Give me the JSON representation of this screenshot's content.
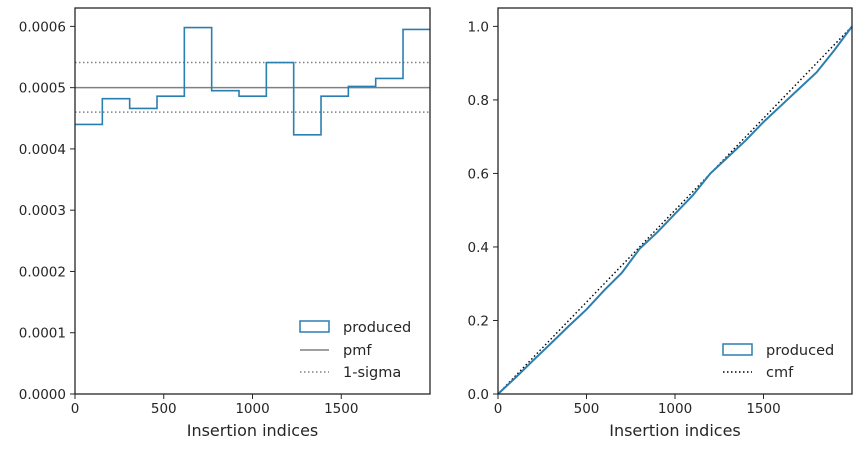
{
  "chart_data": [
    {
      "type": "step",
      "xlabel": "Insertion indices",
      "ylabel": "",
      "title": "",
      "xlim": [
        0,
        2000
      ],
      "ylim": [
        0,
        0.00063
      ],
      "xticks": [
        0,
        500,
        1000,
        1500
      ],
      "xtick_labels": [
        "0",
        "500",
        "1000",
        "1500"
      ],
      "yticks": [
        0,
        0.0001,
        0.0002,
        0.0003,
        0.0004,
        0.0005,
        0.0006
      ],
      "ytick_labels": [
        "0.0000",
        "0.0001",
        "0.0002",
        "0.0003",
        "0.0004",
        "0.0005",
        "0.0006"
      ],
      "bin_edges": [
        0,
        154,
        308,
        462,
        616,
        770,
        924,
        1078,
        1232,
        1386,
        1540,
        1694,
        1848,
        2000
      ],
      "series": [
        {
          "name": "produced",
          "kind": "histogram-step",
          "color": "#2b7fb0",
          "values": [
            0.00044,
            0.000482,
            0.000466,
            0.000486,
            0.000598,
            0.000495,
            0.000486,
            0.000541,
            0.000423,
            0.000486,
            0.000502,
            0.000515,
            0.000595
          ]
        },
        {
          "name": "pmf",
          "kind": "hline",
          "color": "#808080",
          "value": 0.0005
        },
        {
          "name": "1-sigma",
          "kind": "hline-dotted",
          "color": "#808080",
          "values": [
            0.00046,
            0.000541
          ]
        }
      ],
      "legend": {
        "position": "lower-right",
        "entries": [
          "produced",
          "pmf",
          "1-sigma"
        ]
      }
    },
    {
      "type": "line",
      "xlabel": "Insertion indices",
      "ylabel": "",
      "title": "",
      "xlim": [
        0,
        2000
      ],
      "ylim": [
        0,
        1.05
      ],
      "xticks": [
        0,
        500,
        1000,
        1500
      ],
      "xtick_labels": [
        "0",
        "500",
        "1000",
        "1500"
      ],
      "yticks": [
        0,
        0.2,
        0.4,
        0.6,
        0.8,
        1.0
      ],
      "ytick_labels": [
        "0.0",
        "0.2",
        "0.4",
        "0.6",
        "0.8",
        "1.0"
      ],
      "series": [
        {
          "name": "produced",
          "color": "#2b7fb0",
          "x": [
            0,
            100,
            200,
            300,
            400,
            500,
            600,
            700,
            800,
            900,
            1000,
            1100,
            1200,
            1300,
            1400,
            1500,
            1600,
            1700,
            1800,
            1900,
            2000
          ],
          "y": [
            0,
            0.045,
            0.092,
            0.138,
            0.185,
            0.23,
            0.282,
            0.33,
            0.395,
            0.44,
            0.49,
            0.54,
            0.6,
            0.645,
            0.69,
            0.74,
            0.785,
            0.83,
            0.875,
            0.935,
            1.0
          ]
        },
        {
          "name": "cmf",
          "color": "#000000",
          "dash": "dotted",
          "x": [
            0,
            2000
          ],
          "y": [
            0,
            1.0
          ]
        }
      ],
      "legend": {
        "position": "lower-right",
        "entries": [
          "produced",
          "cmf"
        ]
      }
    }
  ]
}
